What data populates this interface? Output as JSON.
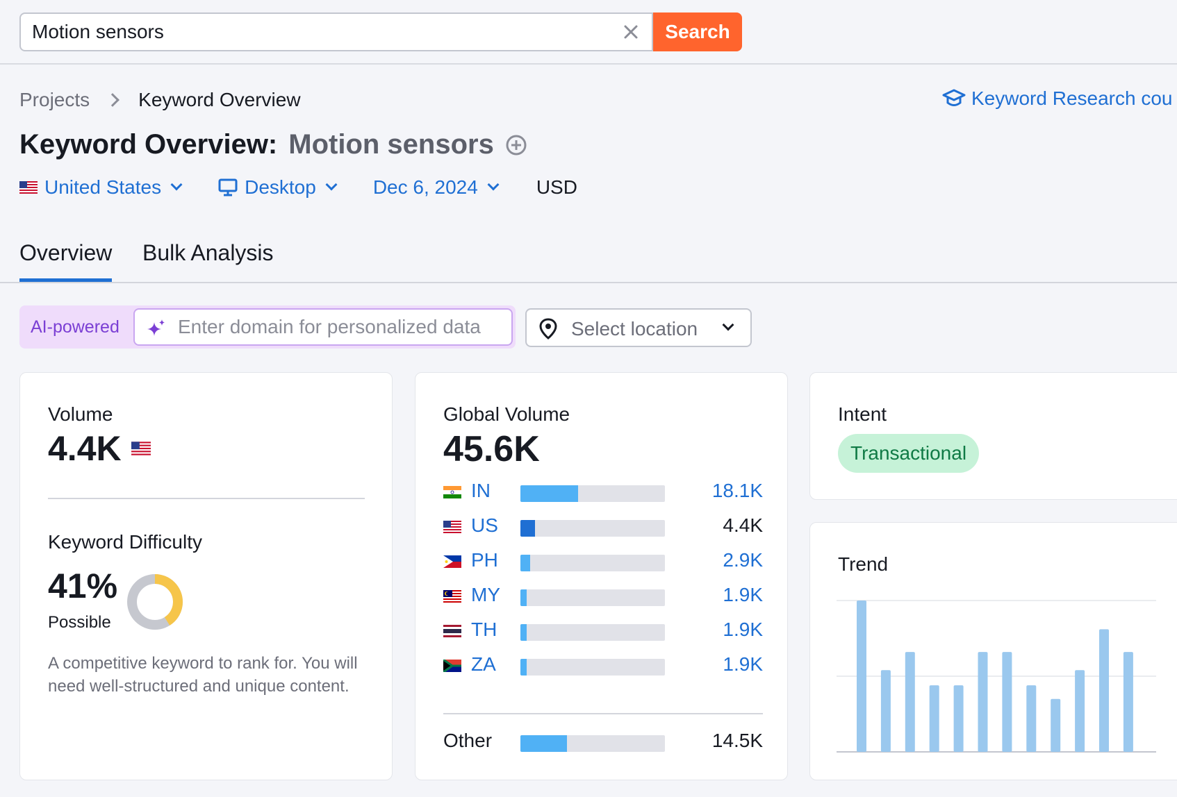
{
  "search": {
    "value": "Motion sensors",
    "button_label": "Search"
  },
  "breadcrumb": {
    "parent": "Projects",
    "current": "Keyword Overview"
  },
  "course_link": "Keyword Research cou",
  "title": {
    "prefix": "Keyword Overview:",
    "keyword": "Motion sensors"
  },
  "filters": {
    "country": "United States",
    "device": "Desktop",
    "date": "Dec 6, 2024",
    "currency": "USD"
  },
  "tabs": [
    {
      "label": "Overview",
      "active": true
    },
    {
      "label": "Bulk Analysis",
      "active": false
    }
  ],
  "ai": {
    "label": "AI-powered",
    "placeholder": "Enter domain for personalized data"
  },
  "location": {
    "placeholder": "Select location"
  },
  "volume": {
    "label": "Volume",
    "value": "4.4K"
  },
  "difficulty": {
    "label": "Keyword Difficulty",
    "value": "41%",
    "percent": 41,
    "level": "Possible",
    "description": "A competitive keyword to rank for. You will need well-structured and unique content."
  },
  "global_volume": {
    "label": "Global Volume",
    "value": "45.6K",
    "countries": [
      {
        "code": "IN",
        "value": "18.1K",
        "share": 0.4,
        "link": true
      },
      {
        "code": "US",
        "value": "4.4K",
        "share": 0.1,
        "link": false
      },
      {
        "code": "PH",
        "value": "2.9K",
        "share": 0.065,
        "link": true
      },
      {
        "code": "MY",
        "value": "1.9K",
        "share": 0.045,
        "link": true
      },
      {
        "code": "TH",
        "value": "1.9K",
        "share": 0.045,
        "link": true
      },
      {
        "code": "ZA",
        "value": "1.9K",
        "share": 0.045,
        "link": true
      }
    ],
    "other": {
      "label": "Other",
      "value": "14.5K",
      "share": 0.32
    }
  },
  "intent": {
    "label": "Intent",
    "value": "Transactional"
  },
  "trend": {
    "label": "Trend",
    "values": [
      1.0,
      0.54,
      0.66,
      0.44,
      0.44,
      0.66,
      0.66,
      0.44,
      0.35,
      0.54,
      0.81,
      0.66
    ]
  },
  "colors": {
    "accent": "#1f6fd3",
    "search_btn": "#ff642d",
    "bar_light": "#50b1f5",
    "bar_us": "#1f6fd3",
    "trend_bar": "#9ac8ee",
    "kd_fill": "#f6c54a",
    "kd_track": "#c6c8cf"
  }
}
